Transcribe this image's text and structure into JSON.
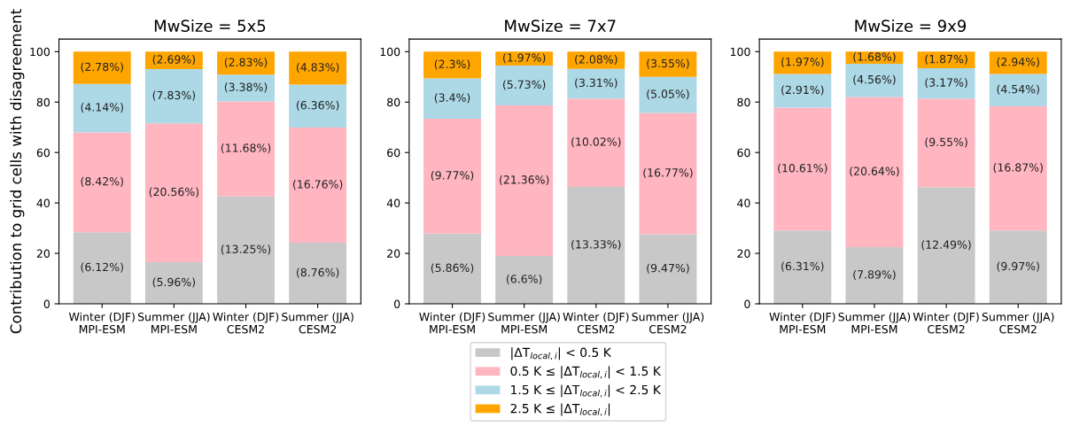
{
  "chart_data": [
    {
      "type": "bar",
      "stacked": true,
      "title": "MwSize = 5x5",
      "ylabel": "Contribution to grid cells with disagreement",
      "categories": [
        "Winter (DJF)\nMPI-ESM",
        "Summer (JJA)\nMPI-ESM",
        "Winter (DJF)\nCESM2",
        "Summer (JJA)\nCESM2"
      ],
      "ylim": [
        0,
        105
      ],
      "yticks": [
        0,
        20,
        40,
        60,
        80,
        100
      ],
      "legend": "bottom",
      "series": [
        {
          "name": "|ΔT$_{local,i}$| < 0.5 K",
          "color": "#c8c8c8",
          "values": [
            28.4,
            16.5,
            42.6,
            24.2
          ]
        },
        {
          "name": "0.5 K ≤ |ΔT$_{local,i}$| < 1.5 K",
          "color": "#ffb6c1",
          "values": [
            39.6,
            55.1,
            37.7,
            45.7
          ]
        },
        {
          "name": "1.5 K ≤ |ΔT$_{local,i}$| < 2.5 K",
          "color": "#add8e6",
          "values": [
            19.2,
            21.5,
            10.6,
            17.0
          ]
        },
        {
          "name": "2.5 K ≤ |ΔT$_{local,i}$|",
          "color": "#ffa500",
          "values": [
            12.8,
            6.9,
            9.1,
            13.1
          ]
        }
      ],
      "annotations": [
        "(6.12%)",
        "(5.96%)",
        "(13.25%)",
        "(8.76%)",
        "(8.42%)",
        "(20.56%)",
        "(11.68%)",
        "(16.76%)",
        "(4.14%)",
        "(7.83%)",
        "(3.38%)",
        "(6.36%)",
        "(2.78%)",
        "(2.69%)",
        "(2.83%)",
        "(4.83%)"
      ]
    },
    {
      "type": "bar",
      "stacked": true,
      "title": "MwSize = 7x7",
      "categories": [
        "Winter (DJF)\nMPI-ESM",
        "Summer (JJA)\nMPI-ESM",
        "Winter (DJF)\nCESM2",
        "Summer (JJA)\nCESM2"
      ],
      "ylim": [
        0,
        105
      ],
      "yticks": [
        0,
        20,
        40,
        60,
        80,
        100
      ],
      "series": [
        {
          "color": "#c8c8c8",
          "values": [
            27.8,
            19.0,
            46.4,
            27.6
          ]
        },
        {
          "color": "#ffb6c1",
          "values": [
            45.6,
            59.7,
            35.0,
            48.1
          ]
        },
        {
          "color": "#add8e6",
          "values": [
            16.0,
            15.8,
            11.8,
            14.3
          ]
        },
        {
          "color": "#ffa500",
          "values": [
            10.6,
            5.5,
            6.8,
            10.0
          ]
        }
      ],
      "annotations": [
        "(5.86%)",
        "(6.6%)",
        "(13.33%)",
        "(9.47%)",
        "(9.77%)",
        "(21.36%)",
        "(10.02%)",
        "(16.77%)",
        "(3.4%)",
        "(5.73%)",
        "(3.31%)",
        "(5.05%)",
        "(2.3%)",
        "(1.97%)",
        "(2.08%)",
        "(3.55%)"
      ]
    },
    {
      "type": "bar",
      "stacked": true,
      "title": "MwSize = 9x9",
      "categories": [
        "Winter (DJF)\nMPI-ESM",
        "Summer (JJA)\nMPI-ESM",
        "Winter (DJF)\nCESM2",
        "Summer (JJA)\nCESM2"
      ],
      "ylim": [
        0,
        105
      ],
      "yticks": [
        0,
        20,
        40,
        60,
        80,
        100
      ],
      "series": [
        {
          "color": "#c8c8c8",
          "values": [
            29.1,
            22.5,
            46.2,
            29.1
          ]
        },
        {
          "color": "#ffb6c1",
          "values": [
            48.7,
            59.5,
            35.2,
            49.2
          ]
        },
        {
          "color": "#add8e6",
          "values": [
            13.4,
            13.2,
            12.0,
            12.9
          ]
        },
        {
          "color": "#ffa500",
          "values": [
            8.8,
            4.8,
            6.6,
            8.8
          ]
        }
      ],
      "annotations": [
        "(6.31%)",
        "(7.89%)",
        "(12.49%)",
        "(9.97%)",
        "(10.61%)",
        "(20.64%)",
        "(9.55%)",
        "(16.87%)",
        "(2.91%)",
        "(4.56%)",
        "(3.17%)",
        "(4.54%)",
        "(1.97%)",
        "(1.68%)",
        "(1.87%)",
        "(2.94%)"
      ]
    }
  ]
}
